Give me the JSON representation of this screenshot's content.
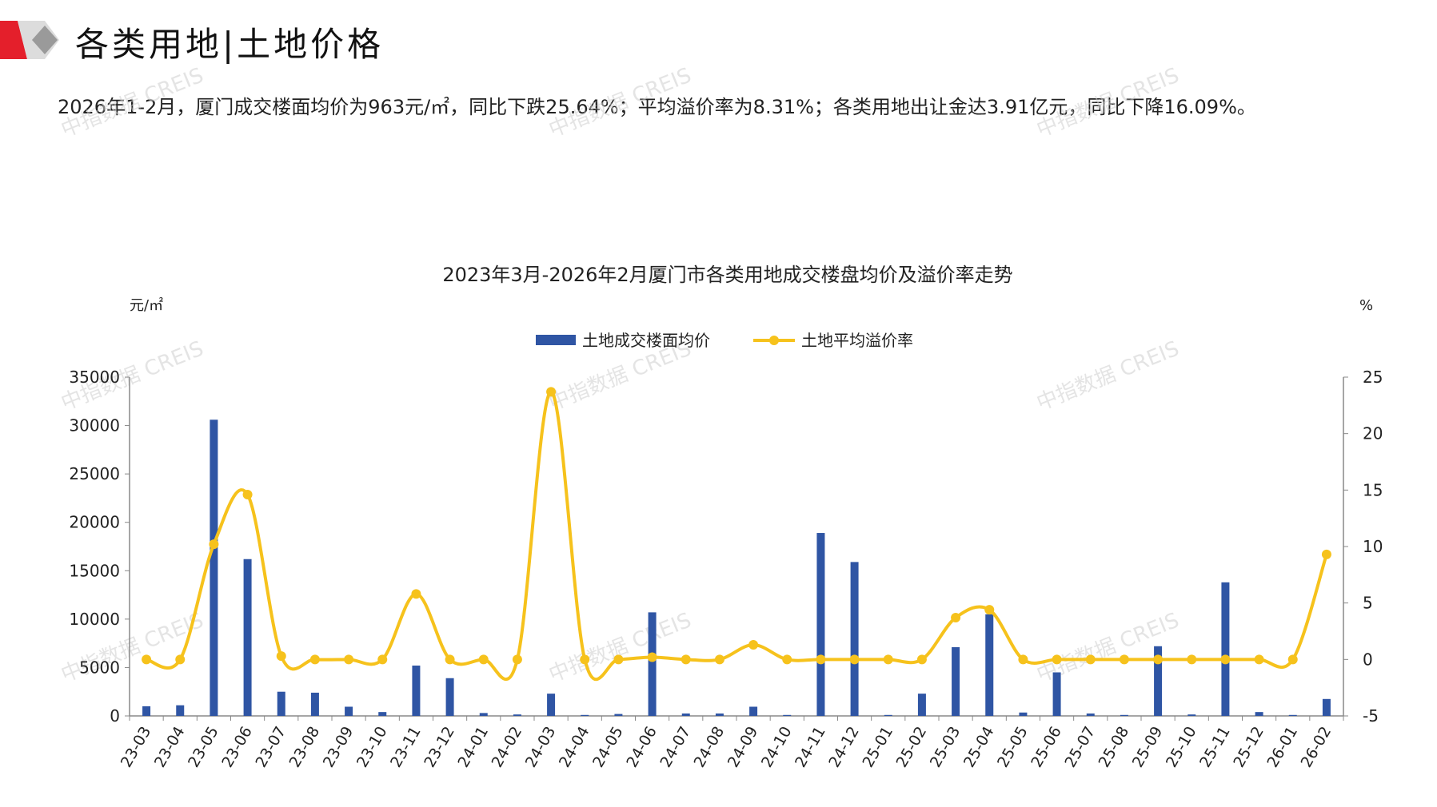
{
  "header": {
    "title": "各类用地|土地价格",
    "summary": "2026年1-2月，厦门成交楼面均价为963元/㎡，同比下跌25.64%；平均溢价率为8.31%；各类用地出让金达3.91亿元，同比下降16.09%。"
  },
  "watermark": {
    "text": "中指数据 CREIS"
  },
  "colors": {
    "brand_red": "#e41f2b",
    "bar_blue": "#2f55a4",
    "line_yellow": "#f6c21c"
  },
  "chart_data": {
    "type": "bar+line",
    "title": "2023年3月-2026年2月厦门市各类用地成交楼盘均价及溢价率走势",
    "ylabel_left": "元/㎡",
    "ylabel_right": "%",
    "ylim_left": [
      0,
      35000
    ],
    "yticks_left": [
      0,
      5000,
      10000,
      15000,
      20000,
      25000,
      30000,
      35000
    ],
    "ylim_right": [
      -5,
      25
    ],
    "yticks_right": [
      -5,
      0,
      5,
      10,
      15,
      20,
      25
    ],
    "legend_position": "top-center",
    "categories": [
      "23-03",
      "23-04",
      "23-05",
      "23-06",
      "23-07",
      "23-08",
      "23-09",
      "23-10",
      "23-11",
      "23-12",
      "24-01",
      "24-02",
      "24-03",
      "24-04",
      "24-05",
      "24-06",
      "24-07",
      "24-08",
      "24-09",
      "24-10",
      "24-11",
      "24-12",
      "25-01",
      "25-02",
      "25-03",
      "25-04",
      "25-05",
      "25-06",
      "25-07",
      "25-08",
      "25-09",
      "25-10",
      "25-11",
      "25-12",
      "26-01",
      "26-02"
    ],
    "series": [
      {
        "name": "土地成交楼面均价",
        "type": "bar",
        "axis": "left",
        "values": [
          1000,
          1100,
          30600,
          16200,
          2500,
          2400,
          950,
          400,
          5200,
          3900,
          300,
          150,
          2300,
          100,
          200,
          10700,
          250,
          250,
          950,
          100,
          18900,
          15900,
          100,
          2300,
          7100,
          10500,
          350,
          4500,
          250,
          100,
          7200,
          150,
          13800,
          400,
          100,
          1750
        ]
      },
      {
        "name": "土地平均溢价率",
        "type": "line",
        "axis": "right",
        "values": [
          0,
          0,
          10.2,
          14.6,
          0.3,
          0,
          0,
          0,
          5.8,
          0,
          0,
          0,
          23.7,
          0,
          0,
          0.2,
          0,
          0,
          1.3,
          0,
          0,
          0,
          0,
          0,
          3.7,
          4.4,
          0,
          0,
          0,
          0,
          0,
          0,
          0,
          0,
          0,
          9.3
        ]
      }
    ]
  }
}
